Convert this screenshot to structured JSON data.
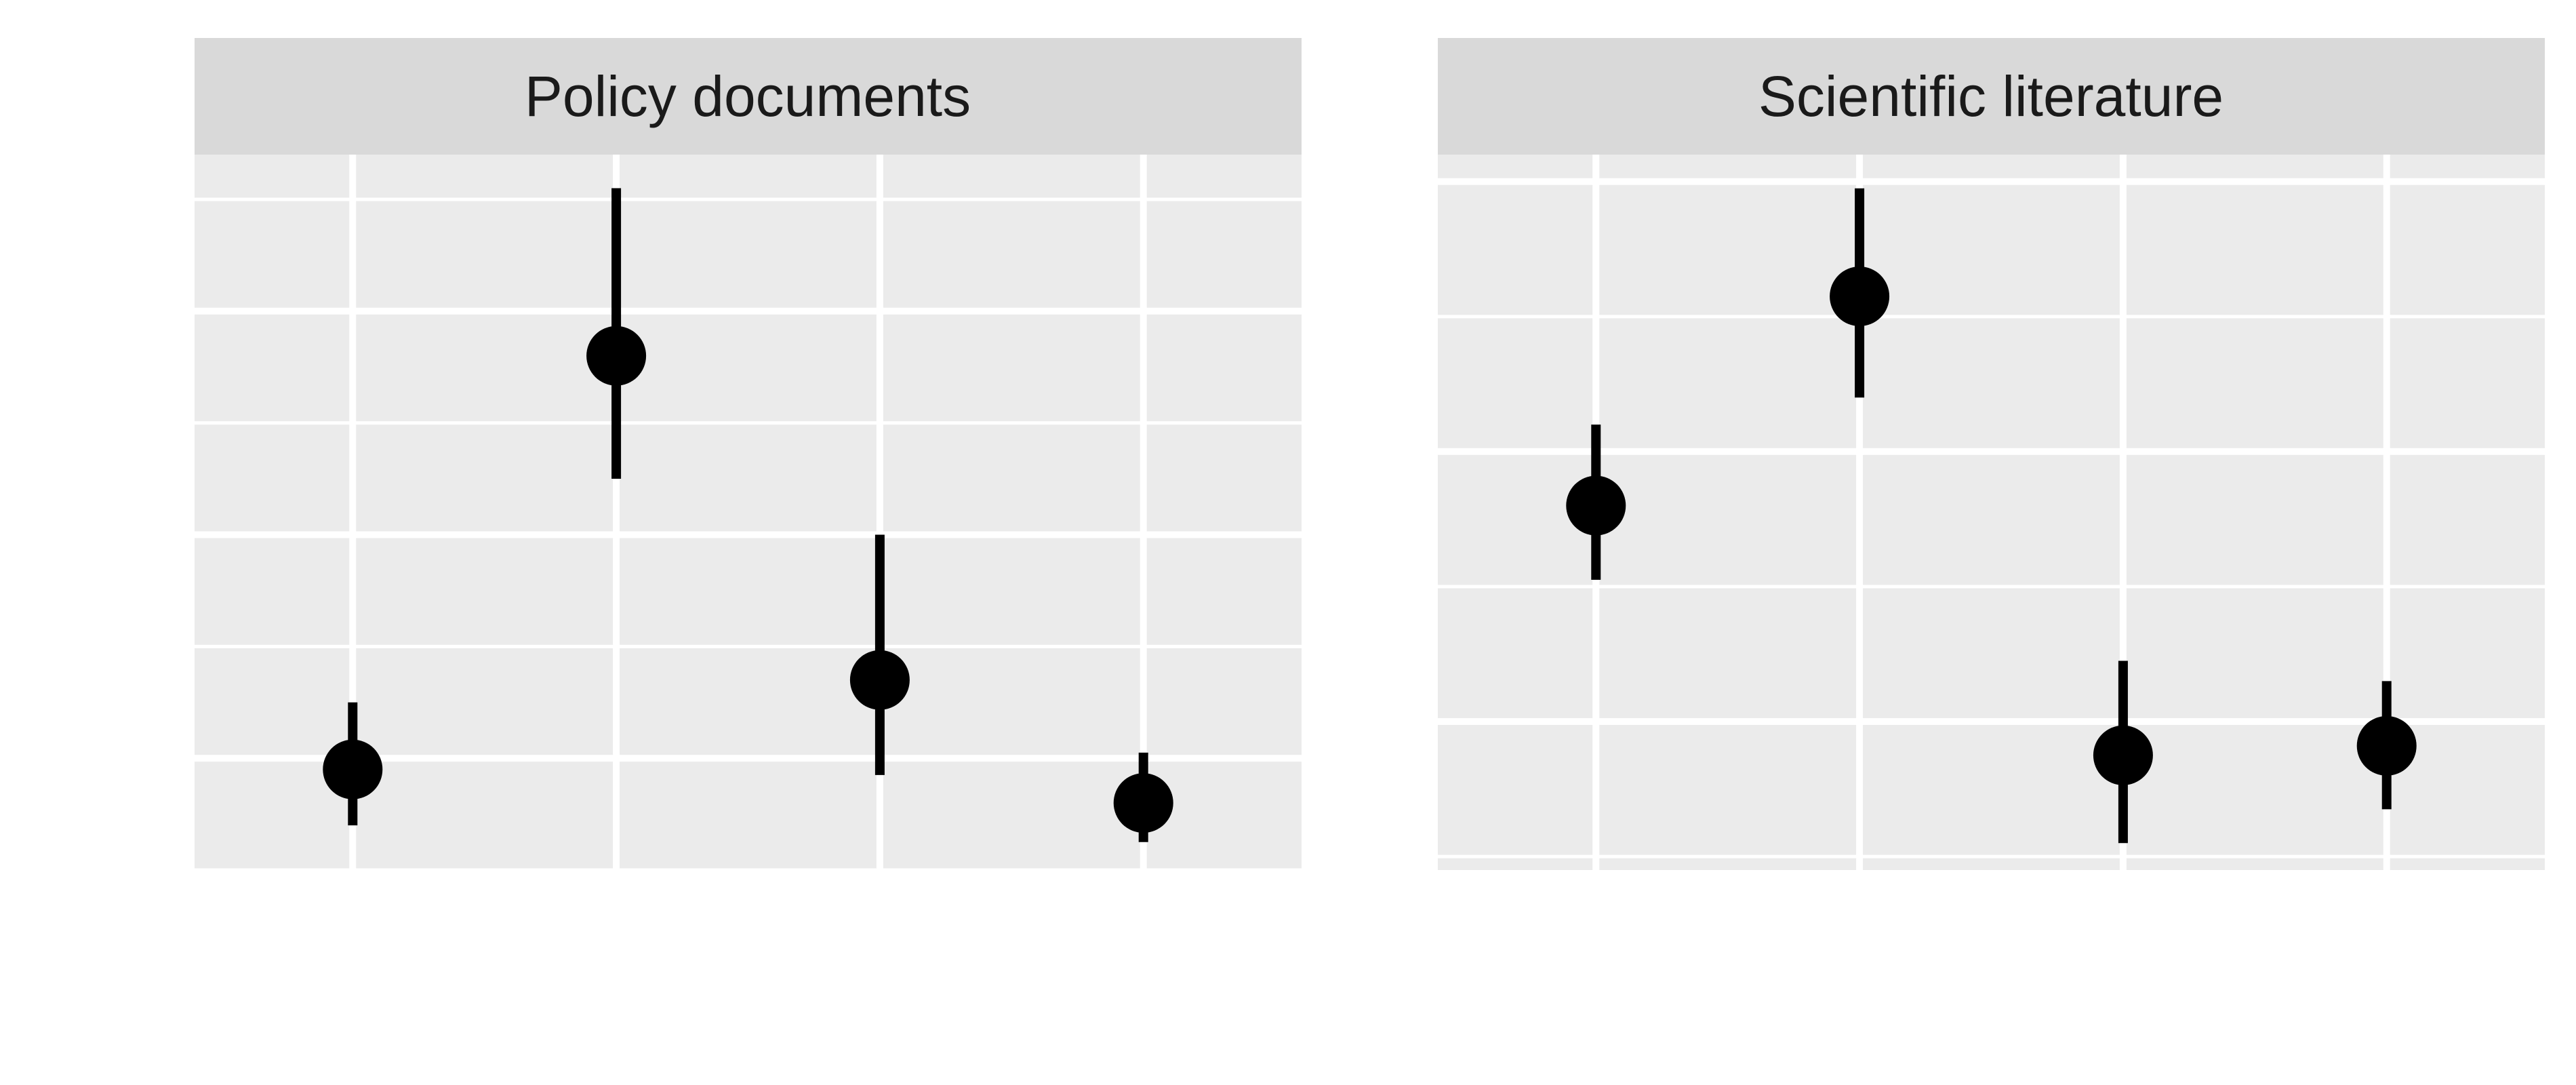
{
  "colors": {
    "panel_background": "#ebebeb",
    "strip_background": "#d9d9d9",
    "gridline": "#ffffff",
    "point": "#000000",
    "strip_text": "#1a1a1a"
  },
  "chart_data": [
    {
      "type": "scatter",
      "title": "Policy documents",
      "xlabel": "",
      "ylabel": "",
      "x": [
        1,
        2,
        3,
        4
      ],
      "ylim": [
        0,
        0.64
      ],
      "grid": true,
      "points": [
        {
          "x": 1,
          "y": 0.09,
          "lower": 0.04,
          "upper": 0.15
        },
        {
          "x": 2,
          "y": 0.46,
          "lower": 0.35,
          "upper": 0.61
        },
        {
          "x": 3,
          "y": 0.17,
          "lower": 0.085,
          "upper": 0.3
        },
        {
          "x": 4,
          "y": 0.06,
          "lower": 0.025,
          "upper": 0.105
        }
      ]
    },
    {
      "type": "scatter",
      "title": "Scientific literature",
      "xlabel": "",
      "ylabel": "",
      "x": [
        1,
        2,
        3,
        4
      ],
      "ylim": [
        0.9,
        6.2
      ],
      "grid": true,
      "points": [
        {
          "x": 1,
          "y": 3.6,
          "lower": 3.05,
          "upper": 4.2
        },
        {
          "x": 2,
          "y": 5.15,
          "lower": 4.4,
          "upper": 5.95
        },
        {
          "x": 3,
          "y": 1.75,
          "lower": 1.1,
          "upper": 2.45
        },
        {
          "x": 4,
          "y": 1.82,
          "lower": 1.35,
          "upper": 2.3
        }
      ]
    }
  ]
}
